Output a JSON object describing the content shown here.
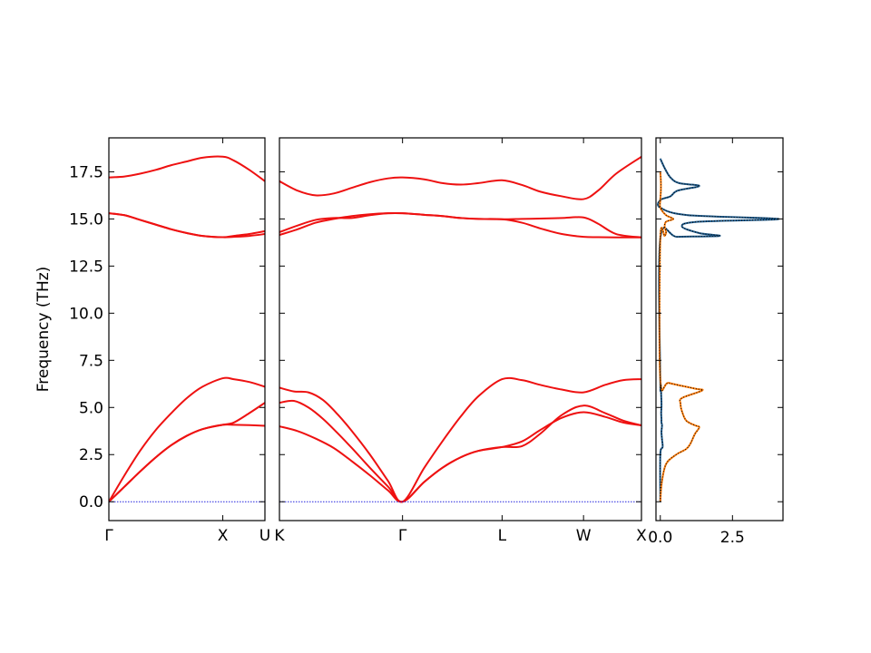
{
  "chart_data": {
    "type": "line",
    "ylabel": "Frequency (THz)",
    "ylim": [
      -1.0,
      19.3
    ],
    "yticks": [
      "0.0",
      "2.5",
      "5.0",
      "7.5",
      "10.0",
      "12.5",
      "15.0",
      "17.5"
    ],
    "ytick_values": [
      0.0,
      2.5,
      5.0,
      7.5,
      10.0,
      12.5,
      15.0,
      17.5
    ],
    "colors": {
      "bands": "#ee1111",
      "zero_line": "#2222dd",
      "dos_total": "#1f5a8a",
      "dos_partial": "#ff7f0e",
      "dos_sum": "#000000"
    },
    "panels": [
      {
        "name": "path-gamma-x-u",
        "ticks": [
          {
            "label": "Γ",
            "pos": 0.0
          },
          {
            "label": "X",
            "pos": 0.73
          },
          {
            "label": "U",
            "pos": 1.0
          }
        ],
        "xlim": [
          0.0,
          1.0
        ],
        "bands": [
          {
            "x": [
              0,
              0.1,
              0.2,
              0.3,
              0.4,
              0.5,
              0.6,
              0.73,
              0.8,
              0.9,
              1.0
            ],
            "y": [
              0.0,
              0.8,
              1.6,
              2.35,
              3.0,
              3.5,
              3.85,
              4.08,
              4.08,
              4.06,
              4.03
            ]
          },
          {
            "x": [
              0,
              0.1,
              0.2,
              0.3,
              0.4,
              0.5,
              0.6,
              0.73,
              0.8,
              0.9,
              1.0
            ],
            "y": [
              0.0,
              0.8,
              1.6,
              2.35,
              3.0,
              3.5,
              3.85,
              4.08,
              4.2,
              4.7,
              5.25
            ]
          },
          {
            "x": [
              0,
              0.1,
              0.2,
              0.3,
              0.4,
              0.5,
              0.6,
              0.73,
              0.8,
              0.9,
              1.0
            ],
            "y": [
              0.0,
              1.4,
              2.7,
              3.8,
              4.7,
              5.5,
              6.1,
              6.55,
              6.5,
              6.35,
              6.1
            ]
          },
          {
            "x": [
              0,
              0.1,
              0.2,
              0.3,
              0.4,
              0.5,
              0.6,
              0.73,
              0.8,
              0.9,
              1.0
            ],
            "y": [
              15.3,
              15.2,
              14.95,
              14.7,
              14.45,
              14.25,
              14.1,
              14.03,
              14.05,
              14.1,
              14.2
            ]
          },
          {
            "x": [
              0,
              0.1,
              0.2,
              0.3,
              0.4,
              0.5,
              0.6,
              0.73,
              0.8,
              0.9,
              1.0
            ],
            "y": [
              15.3,
              15.2,
              14.95,
              14.7,
              14.45,
              14.25,
              14.1,
              14.03,
              14.1,
              14.2,
              14.35
            ]
          },
          {
            "x": [
              0,
              0.1,
              0.2,
              0.3,
              0.4,
              0.5,
              0.6,
              0.73,
              0.8,
              0.9,
              1.0
            ],
            "y": [
              17.2,
              17.25,
              17.4,
              17.6,
              17.85,
              18.05,
              18.25,
              18.3,
              18.1,
              17.6,
              17.0
            ]
          },
          {
            "x": [
              0,
              1.0
            ],
            "y": [
              0.0,
              0.0
            ],
            "style": "zero"
          }
        ]
      },
      {
        "name": "path-k-gamma-l-w-x",
        "ticks": [
          {
            "label": "K",
            "pos": 0.0
          },
          {
            "label": "Γ",
            "pos": 0.34
          },
          {
            "label": "L",
            "pos": 0.615
          },
          {
            "label": "W",
            "pos": 0.84
          },
          {
            "label": "X",
            "pos": 1.0
          }
        ],
        "xlim": [
          0.0,
          1.0
        ],
        "bands": [
          {
            "x": [
              0,
              0.05,
              0.1,
              0.15,
              0.2,
              0.25,
              0.3,
              0.34,
              0.4,
              0.45,
              0.5,
              0.55,
              0.615,
              0.67,
              0.72,
              0.78,
              0.84,
              0.9,
              0.95,
              1.0
            ],
            "y": [
              4.0,
              3.75,
              3.35,
              2.85,
              2.15,
              1.4,
              0.6,
              0.0,
              1.05,
              1.8,
              2.35,
              2.7,
              2.9,
              3.2,
              3.8,
              4.45,
              4.75,
              4.5,
              4.2,
              4.05
            ]
          },
          {
            "x": [
              0,
              0.04,
              0.08,
              0.12,
              0.16,
              0.2,
              0.25,
              0.3,
              0.34,
              0.4,
              0.45,
              0.5,
              0.55,
              0.615,
              0.67,
              0.72,
              0.78,
              0.84,
              0.9,
              0.95,
              1.0
            ],
            "y": [
              5.25,
              5.35,
              5.0,
              4.4,
              3.65,
              2.85,
              1.8,
              0.8,
              0.0,
              1.05,
              1.8,
              2.35,
              2.7,
              2.9,
              2.95,
              3.6,
              4.6,
              5.1,
              4.7,
              4.3,
              4.05
            ]
          },
          {
            "x": [
              0,
              0.04,
              0.08,
              0.12,
              0.16,
              0.2,
              0.25,
              0.3,
              0.34,
              0.4,
              0.45,
              0.5,
              0.55,
              0.615,
              0.67,
              0.72,
              0.78,
              0.84,
              0.9,
              0.95,
              1.0
            ],
            "y": [
              6.05,
              5.85,
              5.8,
              5.4,
              4.65,
              3.75,
              2.5,
              1.1,
              0.0,
              1.8,
              3.2,
              4.5,
              5.6,
              6.5,
              6.45,
              6.2,
              5.95,
              5.8,
              6.2,
              6.45,
              6.5
            ]
          },
          {
            "x": [
              0,
              0.05,
              0.1,
              0.15,
              0.2,
              0.25,
              0.3,
              0.34,
              0.4,
              0.45,
              0.5,
              0.55,
              0.615,
              0.67,
              0.72,
              0.78,
              0.84,
              0.88,
              0.93,
              1.0
            ],
            "y": [
              14.15,
              14.45,
              14.8,
              15.0,
              15.15,
              15.25,
              15.3,
              15.3,
              15.22,
              15.15,
              15.05,
              15.0,
              14.98,
              14.8,
              14.5,
              14.2,
              14.05,
              14.03,
              14.02,
              14.02
            ]
          },
          {
            "x": [
              0,
              0.05,
              0.1,
              0.15,
              0.2,
              0.25,
              0.3,
              0.34,
              0.4,
              0.45,
              0.5,
              0.55,
              0.615,
              0.67,
              0.72,
              0.78,
              0.84,
              0.88,
              0.93,
              1.0
            ],
            "y": [
              14.3,
              14.65,
              14.95,
              15.05,
              15.05,
              15.2,
              15.3,
              15.3,
              15.22,
              15.15,
              15.05,
              15.0,
              14.98,
              15.0,
              15.02,
              15.05,
              15.08,
              14.75,
              14.2,
              14.02
            ]
          },
          {
            "x": [
              0,
              0.05,
              0.1,
              0.15,
              0.2,
              0.25,
              0.3,
              0.34,
              0.4,
              0.45,
              0.5,
              0.55,
              0.615,
              0.67,
              0.72,
              0.78,
              0.84,
              0.88,
              0.93,
              1.0
            ],
            "y": [
              17.0,
              16.5,
              16.25,
              16.35,
              16.65,
              16.95,
              17.15,
              17.2,
              17.1,
              16.9,
              16.82,
              16.9,
              17.05,
              16.8,
              16.45,
              16.2,
              16.05,
              16.5,
              17.4,
              18.3
            ]
          },
          {
            "x": [
              0,
              1.0
            ],
            "y": [
              0.0,
              0.0
            ],
            "style": "zero"
          }
        ]
      },
      {
        "name": "dos",
        "xlim": [
          -0.15,
          4.25
        ],
        "xtick_labels": [
          "0.0",
          "2.5"
        ],
        "xtick_values": [
          0.0,
          2.5
        ],
        "dos_total": {
          "y": [
            0.0,
            2.5,
            2.9,
            3.3,
            3.7,
            4.05,
            4.2,
            4.4,
            4.7,
            5.0,
            5.3,
            5.7,
            6.0,
            6.2,
            6.5,
            13.95,
            14.05,
            14.1,
            14.25,
            14.6,
            14.85,
            15.0,
            15.2,
            15.6,
            16.0,
            16.2,
            16.5,
            16.75,
            16.9,
            17.2,
            17.7,
            18.2
          ],
          "x": [
            0.0,
            0.0,
            0.08,
            0.06,
            0.04,
            0.06,
            0.04,
            0.04,
            0.03,
            0.04,
            0.04,
            0.03,
            0.03,
            0.02,
            0.0,
            0.0,
            0.6,
            2.05,
            1.35,
            0.75,
            1.3,
            4.1,
            0.95,
            0.0,
            0.0,
            0.35,
            0.6,
            1.35,
            0.65,
            0.35,
            0.15,
            0.0
          ]
        },
        "dos_partial": {
          "y": [
            0.0,
            1.0,
            2.0,
            2.5,
            2.8,
            3.1,
            3.6,
            3.95,
            4.05,
            4.3,
            4.8,
            5.2,
            5.5,
            5.9,
            6.0,
            6.3,
            6.5,
            13.95,
            14.1,
            14.3,
            14.6,
            14.85,
            15.0,
            15.2,
            15.6,
            16.0,
            16.5,
            17.0,
            17.5
          ],
          "x": [
            0.0,
            0.05,
            0.2,
            0.55,
            0.9,
            1.05,
            1.2,
            1.35,
            1.2,
            0.9,
            0.75,
            0.7,
            0.75,
            1.45,
            1.2,
            0.3,
            0.0,
            0.0,
            0.15,
            0.2,
            0.15,
            0.2,
            0.45,
            0.2,
            0.0,
            0.0,
            0.02,
            0.02,
            0.0
          ]
        }
      }
    ]
  }
}
